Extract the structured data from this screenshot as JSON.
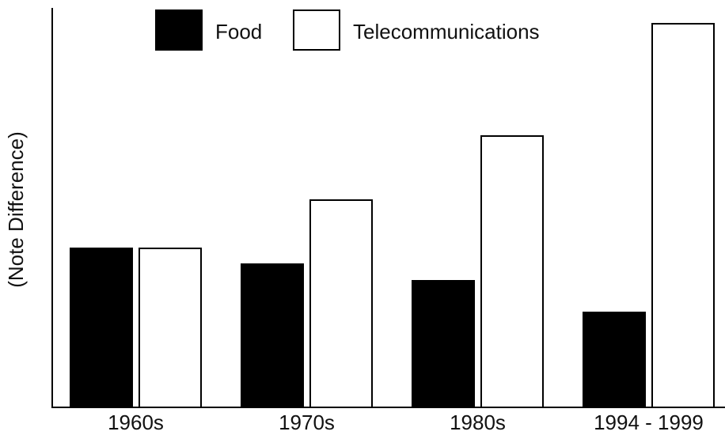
{
  "chart_data": {
    "type": "bar",
    "ylabel": "(Note Difference)",
    "categories": [
      "1960s",
      "1970s",
      "1980s",
      "1994 - 1999"
    ],
    "series": [
      {
        "name": "Food",
        "color": "#000000",
        "values": [
          201,
          181,
          160,
          120
        ]
      },
      {
        "name": "Telecommunications",
        "color": "#ffffff",
        "values": [
          201,
          262,
          343,
          485
        ]
      }
    ],
    "ylim": [
      0,
      505
    ],
    "legend": "top"
  }
}
